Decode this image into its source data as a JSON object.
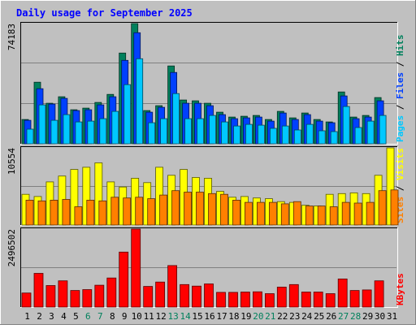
{
  "chart_data": [
    {
      "type": "bar",
      "panel": "hits-files-pages",
      "title": "Daily usage for September 2025",
      "y_tick_label": "74183",
      "ylim": [
        0,
        74183
      ],
      "legend_right": [
        {
          "text": "Pages",
          "color": "#00c8ff"
        },
        {
          "text": "Files",
          "color": "#0040ff"
        },
        {
          "text": "Hits",
          "color": "#00805c"
        }
      ],
      "categories": [
        "1",
        "2",
        "3",
        "4",
        "5",
        "6",
        "7",
        "8",
        "9",
        "10",
        "11",
        "12",
        "13",
        "14",
        "15",
        "16",
        "17",
        "18",
        "19",
        "20",
        "21",
        "22",
        "23",
        "24",
        "25",
        "26",
        "27",
        "28",
        "29",
        "30",
        "31"
      ],
      "series": [
        {
          "name": "Hits",
          "color": "#00805c",
          "values": [
            15000,
            38000,
            25000,
            29000,
            21000,
            22000,
            25500,
            30500,
            56000,
            74183,
            20500,
            23500,
            48000,
            27000,
            26500,
            25000,
            19500,
            16500,
            17000,
            17500,
            15000,
            20000,
            16000,
            19000,
            15000,
            13500,
            32000,
            16500,
            17500,
            28500,
            0
          ]
        },
        {
          "name": "Files",
          "color": "#0040ff",
          "values": [
            14500,
            34000,
            24500,
            28000,
            20500,
            21000,
            24000,
            29000,
            51500,
            68500,
            19500,
            22500,
            44000,
            25000,
            25000,
            23500,
            18000,
            15500,
            16000,
            16500,
            14000,
            19000,
            15000,
            18000,
            14000,
            13000,
            29500,
            15500,
            16500,
            26500,
            0
          ]
        },
        {
          "name": "Pages",
          "color": "#00c8ff",
          "values": [
            9000,
            24000,
            14500,
            18000,
            13500,
            14000,
            15500,
            20000,
            36500,
            52500,
            13000,
            15500,
            31000,
            15500,
            15500,
            17500,
            13500,
            11000,
            12000,
            11500,
            9500,
            11000,
            8500,
            12000,
            8000,
            7500,
            23000,
            10000,
            14000,
            17500,
            0
          ]
        }
      ]
    },
    {
      "type": "bar",
      "panel": "visits-sites",
      "y_tick_label": "10554",
      "ylim": [
        0,
        10554
      ],
      "legend_right": [
        {
          "text": "Sites",
          "color": "#ff8000"
        },
        {
          "text": "Visits",
          "color": "#ffff00"
        }
      ],
      "categories": [
        "1",
        "2",
        "3",
        "4",
        "5",
        "6",
        "7",
        "8",
        "9",
        "10",
        "11",
        "12",
        "13",
        "14",
        "15",
        "16",
        "17",
        "18",
        "19",
        "20",
        "21",
        "22",
        "23",
        "24",
        "25",
        "26",
        "27",
        "28",
        "29",
        "30",
        "31"
      ],
      "series": [
        {
          "name": "Visits",
          "color": "#ffff00",
          "values": [
            4200,
            3900,
            5900,
            6700,
            7600,
            7900,
            8500,
            5900,
            5200,
            6400,
            5800,
            7900,
            6800,
            7600,
            6500,
            6400,
            4600,
            3800,
            3900,
            3700,
            3600,
            3200,
            3100,
            2700,
            2600,
            4200,
            4300,
            4400,
            4300,
            6800,
            10554
          ]
        },
        {
          "name": "Sites",
          "color": "#ff8000",
          "values": [
            3400,
            3300,
            3400,
            3500,
            2500,
            3400,
            3300,
            3800,
            3700,
            3800,
            3600,
            4100,
            4700,
            4500,
            4500,
            4300,
            4200,
            3400,
            3100,
            3100,
            3100,
            2900,
            3200,
            2600,
            2600,
            2500,
            3100,
            3000,
            3100,
            4700,
            4800
          ]
        }
      ]
    },
    {
      "type": "bar",
      "panel": "kbytes",
      "y_tick_label": "2496502",
      "ylim": [
        0,
        2496502
      ],
      "legend_right": [
        {
          "text": "KBytes",
          "color": "#ff0000"
        }
      ],
      "categories": [
        "1",
        "2",
        "3",
        "4",
        "5",
        "6",
        "7",
        "8",
        "9",
        "10",
        "11",
        "12",
        "13",
        "14",
        "15",
        "16",
        "17",
        "18",
        "19",
        "20",
        "21",
        "22",
        "23",
        "24",
        "25",
        "26",
        "27",
        "28",
        "29",
        "30",
        "31"
      ],
      "series": [
        {
          "name": "KBytes",
          "color": "#ff0000",
          "values": [
            450000,
            1080000,
            690000,
            840000,
            530000,
            560000,
            700000,
            930000,
            1760000,
            2496502,
            660000,
            800000,
            1330000,
            720000,
            670000,
            740000,
            470000,
            470000,
            480000,
            490000,
            430000,
            640000,
            720000,
            480000,
            480000,
            430000,
            900000,
            530000,
            550000,
            840000,
            0
          ]
        }
      ]
    }
  ],
  "x_axis": {
    "labels": [
      {
        "text": "1",
        "weekend": false
      },
      {
        "text": "2",
        "weekend": false
      },
      {
        "text": "3",
        "weekend": false
      },
      {
        "text": "4",
        "weekend": false
      },
      {
        "text": "5",
        "weekend": false
      },
      {
        "text": "6",
        "weekend": true
      },
      {
        "text": "7",
        "weekend": true
      },
      {
        "text": "8",
        "weekend": false
      },
      {
        "text": "9",
        "weekend": false
      },
      {
        "text": "10",
        "weekend": false
      },
      {
        "text": "11",
        "weekend": false
      },
      {
        "text": "12",
        "weekend": false
      },
      {
        "text": "13",
        "weekend": true
      },
      {
        "text": "14",
        "weekend": true
      },
      {
        "text": "15",
        "weekend": false
      },
      {
        "text": "16",
        "weekend": false
      },
      {
        "text": "17",
        "weekend": false
      },
      {
        "text": "18",
        "weekend": false
      },
      {
        "text": "19",
        "weekend": false
      },
      {
        "text": "20",
        "weekend": true
      },
      {
        "text": "21",
        "weekend": true
      },
      {
        "text": "22",
        "weekend": false
      },
      {
        "text": "23",
        "weekend": false
      },
      {
        "text": "24",
        "weekend": false
      },
      {
        "text": "25",
        "weekend": false
      },
      {
        "text": "26",
        "weekend": false
      },
      {
        "text": "27",
        "weekend": true
      },
      {
        "text": "28",
        "weekend": true
      },
      {
        "text": "29",
        "weekend": false
      },
      {
        "text": "30",
        "weekend": false
      },
      {
        "text": "31",
        "weekend": false
      }
    ],
    "weekday_color": "#000000",
    "weekend_color": "#00805c"
  },
  "colors": {
    "background": "#c0c0c0",
    "title": "#0000ff",
    "gridline": "#808080"
  }
}
